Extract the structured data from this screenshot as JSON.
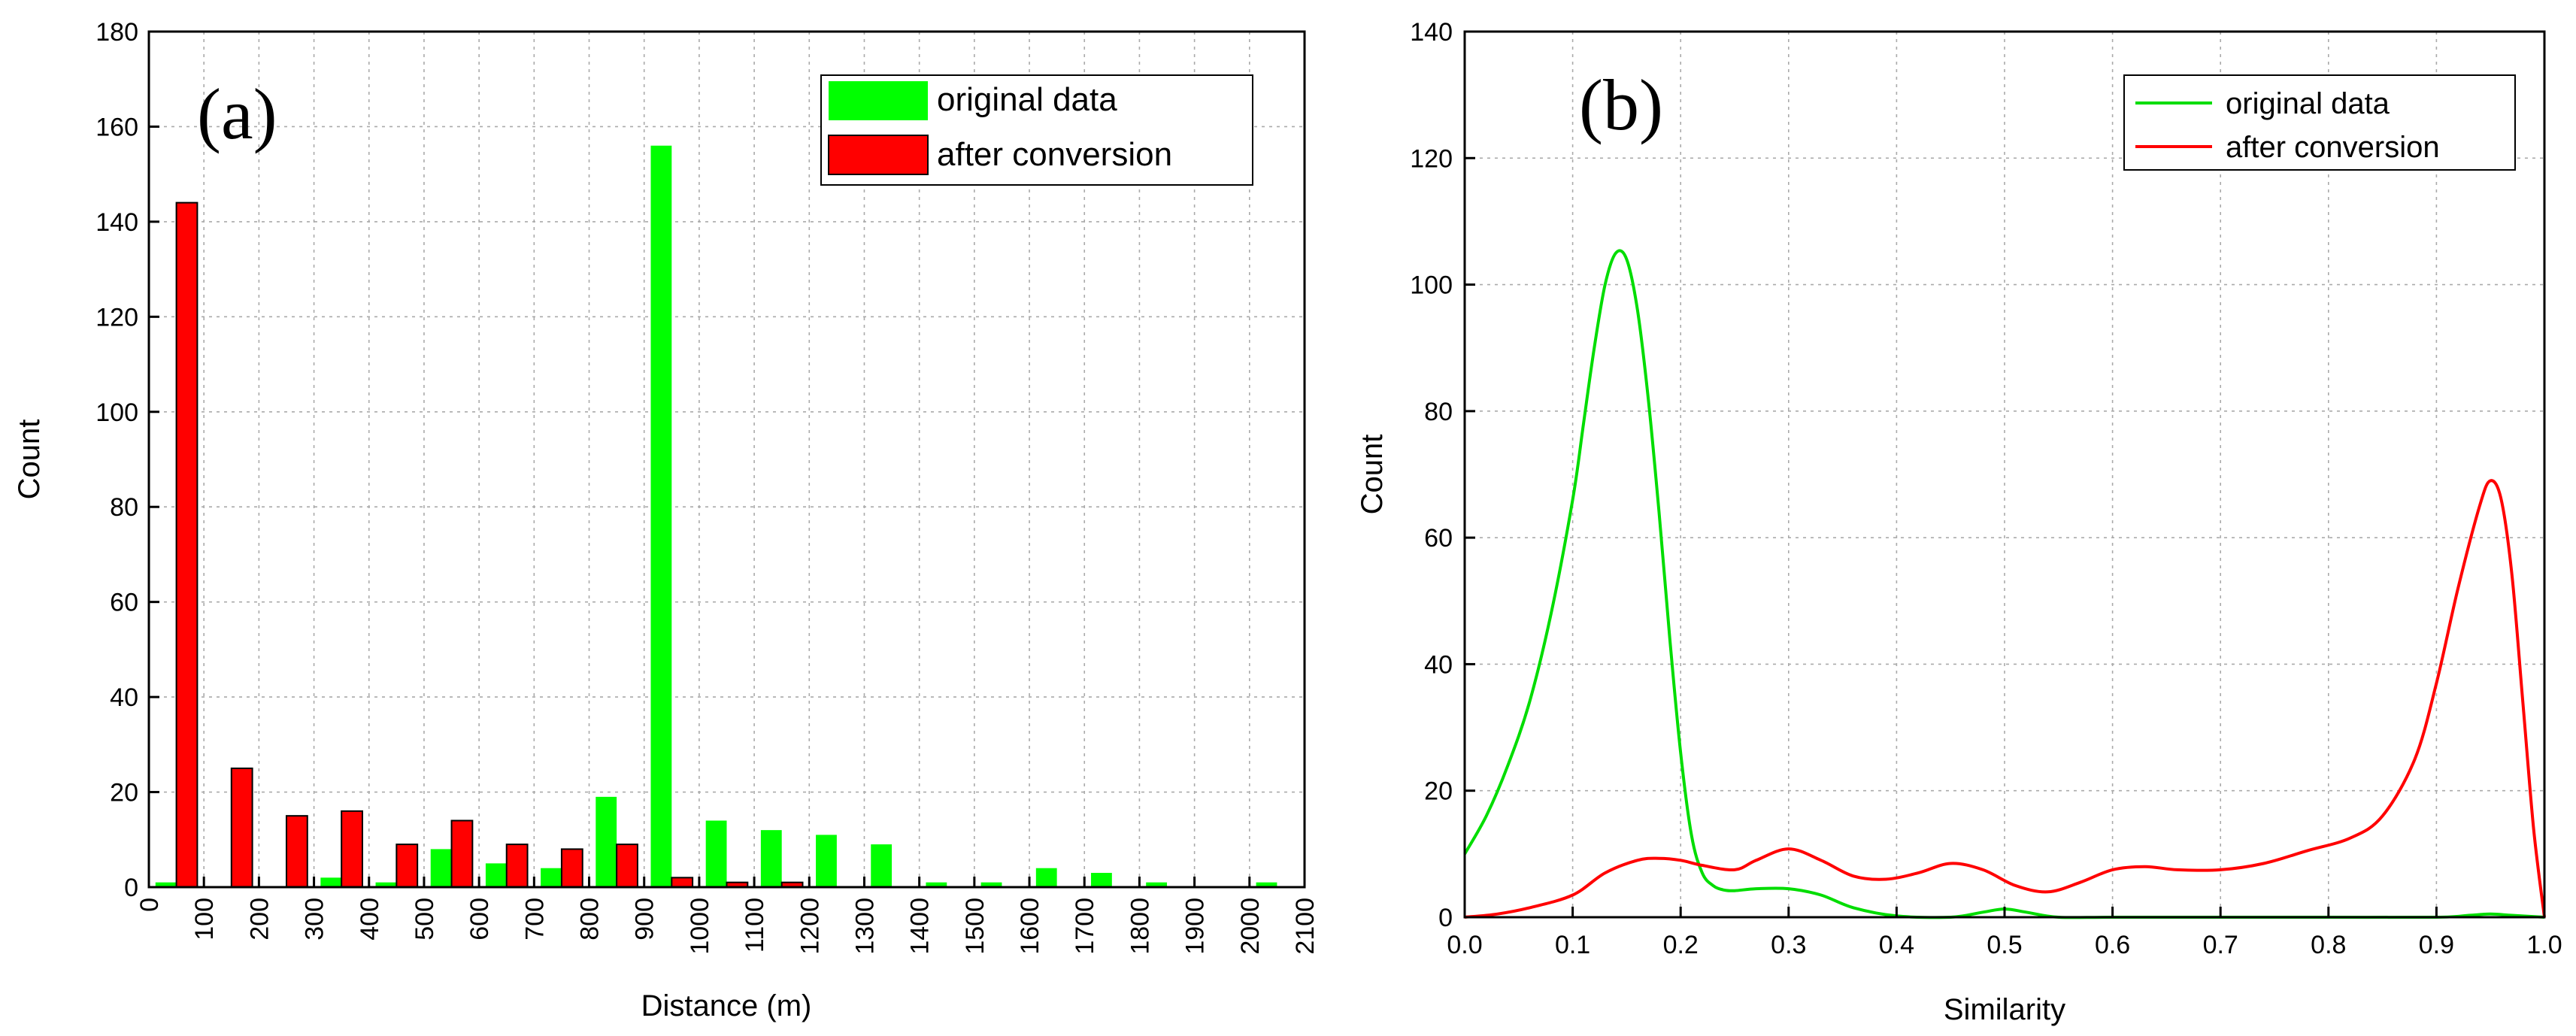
{
  "chart_data": [
    {
      "type": "bar",
      "panel_label": "(a)",
      "xlabel": "Distance (m)",
      "ylabel": "Count",
      "xlim": [
        0,
        2100
      ],
      "ylim": [
        0,
        180
      ],
      "x_ticks": [
        "0",
        "100",
        "200",
        "300",
        "400",
        "500",
        "600",
        "700",
        "800",
        "900",
        "1000",
        "1100",
        "1200",
        "1300",
        "1400",
        "1500",
        "1600",
        "1700",
        "1800",
        "1900",
        "2000",
        "2100"
      ],
      "y_ticks": [
        "0",
        "20",
        "40",
        "60",
        "80",
        "100",
        "120",
        "140",
        "160",
        "180"
      ],
      "grid": true,
      "legend_position": "top-right",
      "categories": [
        0,
        100,
        200,
        300,
        400,
        500,
        600,
        700,
        800,
        900,
        1000,
        1100,
        1200,
        1300,
        1400,
        1500,
        1600,
        1700,
        1800,
        1900,
        2000
      ],
      "series": [
        {
          "name": "original data",
          "color": "#00ff00",
          "values": [
            1,
            0,
            0,
            2,
            1,
            8,
            5,
            4,
            19,
            156,
            14,
            12,
            11,
            9,
            1,
            1,
            4,
            3,
            1,
            0,
            1
          ]
        },
        {
          "name": "after conversion",
          "color": "#ff0000",
          "values": [
            144,
            25,
            15,
            16,
            9,
            14,
            9,
            8,
            9,
            2,
            1,
            1,
            0,
            0,
            0,
            0,
            0,
            0,
            0,
            0,
            0
          ]
        }
      ]
    },
    {
      "type": "line",
      "panel_label": "(b)",
      "xlabel": "Similarity",
      "ylabel": "Count",
      "xlim": [
        0,
        1
      ],
      "ylim": [
        0,
        140
      ],
      "x_ticks": [
        "0.0",
        "0.1",
        "0.2",
        "0.3",
        "0.4",
        "0.5",
        "0.6",
        "0.7",
        "0.8",
        "0.9",
        "1.0"
      ],
      "y_ticks": [
        "0",
        "20",
        "40",
        "60",
        "80",
        "100",
        "120",
        "140"
      ],
      "grid": true,
      "legend_position": "top-right",
      "series": [
        {
          "name": "original data",
          "color": "#00dd00",
          "x": [
            0,
            0.02,
            0.04,
            0.06,
            0.08,
            0.1,
            0.11,
            0.12,
            0.13,
            0.14,
            0.15,
            0.16,
            0.17,
            0.18,
            0.19,
            0.2,
            0.21,
            0.22,
            0.23,
            0.24,
            0.25,
            0.27,
            0.3,
            0.33,
            0.36,
            0.4,
            0.45,
            0.48,
            0.5,
            0.52,
            0.55,
            0.6,
            0.7,
            0.8,
            0.9,
            0.93,
            0.95,
            0.97,
            1.0
          ],
          "y": [
            10,
            16,
            24,
            34,
            48,
            66,
            78,
            90,
            100,
            105,
            104,
            96,
            82,
            64,
            44,
            26,
            13,
            7,
            5,
            4.3,
            4.2,
            4.5,
            4.5,
            3.5,
            1.5,
            0.2,
            0,
            0.8,
            1.3,
            0.8,
            0,
            0,
            0,
            0,
            0,
            0.3,
            0.5,
            0.3,
            0
          ]
        },
        {
          "name": "after conversion",
          "color": "#ff0000",
          "x": [
            0,
            0.03,
            0.06,
            0.1,
            0.13,
            0.16,
            0.18,
            0.2,
            0.22,
            0.25,
            0.27,
            0.3,
            0.33,
            0.36,
            0.39,
            0.42,
            0.45,
            0.48,
            0.51,
            0.54,
            0.57,
            0.6,
            0.63,
            0.66,
            0.7,
            0.74,
            0.78,
            0.82,
            0.85,
            0.88,
            0.9,
            0.92,
            0.94,
            0.95,
            0.96,
            0.97,
            0.98,
            0.99,
            1.0
          ],
          "y": [
            0,
            0.5,
            1.5,
            3.5,
            7,
            9,
            9.3,
            9,
            8.2,
            7.5,
            9,
            10.8,
            9,
            6.5,
            6,
            7,
            8.5,
            7.5,
            5,
            4,
            5.5,
            7.5,
            8,
            7.5,
            7.5,
            8.5,
            10.5,
            12.5,
            16,
            25,
            37,
            52,
            65,
            69,
            66,
            54,
            34,
            14,
            0
          ]
        }
      ]
    }
  ]
}
